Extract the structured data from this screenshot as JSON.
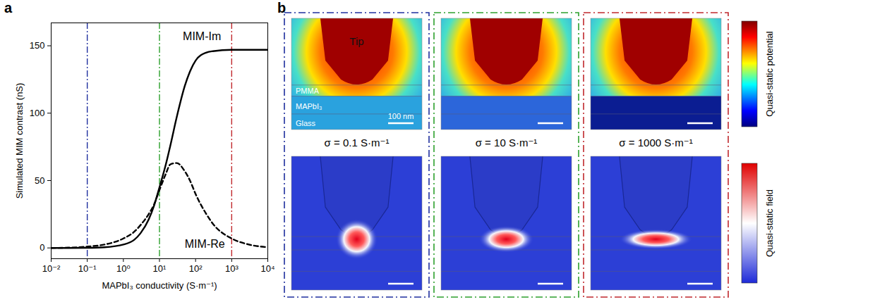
{
  "panel_labels": [
    "a",
    "b"
  ],
  "chart_data": {
    "type": "line",
    "xlabel": "MAPbI₃ conductivity (S·m⁻¹)",
    "ylabel": "Simulated MIM contrast (nS)",
    "log": "x",
    "x": [
      0.01,
      0.03,
      0.1,
      0.3,
      1,
      2,
      3,
      5,
      7,
      10,
      15,
      20,
      30,
      50,
      70,
      100,
      200,
      300,
      1000,
      3000,
      10000
    ],
    "series": [
      {
        "name": "MIM-Im",
        "color": "#000000",
        "line_style": "solid",
        "values": [
          0,
          0,
          0.1,
          0.5,
          2.5,
          6,
          11,
          21,
          31,
          45,
          62,
          76,
          97,
          120,
          131,
          139,
          145,
          146,
          147,
          147,
          147
        ]
      },
      {
        "name": "MIM-Re",
        "color": "#000000",
        "line_style": "dashed",
        "values": [
          0,
          0.2,
          1,
          2.5,
          7,
          12,
          17,
          25,
          32,
          43,
          55,
          62,
          63,
          57,
          50,
          40,
          25,
          18,
          7,
          2.5,
          0.5
        ]
      }
    ],
    "xlim": [
      0.01,
      10000
    ],
    "xticks": [
      {
        "value": 0.01,
        "label": "10⁻²"
      },
      {
        "value": 0.1,
        "label": "10⁻¹"
      },
      {
        "value": 1,
        "label": "10⁰"
      },
      {
        "value": 10,
        "label": "10¹"
      },
      {
        "value": 100,
        "label": "10²"
      },
      {
        "value": 1000,
        "label": "10³"
      },
      {
        "value": 10000,
        "label": "10⁴"
      }
    ],
    "ylim": [
      -8,
      167
    ],
    "yticks": [
      0,
      50,
      100,
      150
    ],
    "annotations": [
      {
        "text": "MIM-Im",
        "x": 150,
        "y": 157
      },
      {
        "text": "MIM-Re",
        "x": 180,
        "y": 3
      }
    ],
    "reference_lines": [
      {
        "x": 0.1,
        "color": "#1f2f9e",
        "line_style": "dashdot"
      },
      {
        "x": 10,
        "color": "#2ca02c",
        "line_style": "dashdot"
      },
      {
        "x": 1000,
        "color": "#c0282d",
        "line_style": "dashdot"
      }
    ]
  },
  "simulation_maps": {
    "columns": [
      {
        "sigma_label": "σ = 0.1 S·m⁻¹",
        "color": "#1f2f9e"
      },
      {
        "sigma_label": "σ = 10 S·m⁻¹",
        "color": "#2ca02c"
      },
      {
        "sigma_label": "σ = 1000 S·m⁻¹",
        "color": "#c0282d"
      }
    ],
    "layer_labels": [
      "Tip",
      "PMMA",
      "MAPbI₃",
      "Glass"
    ],
    "scale_bar": "100 nm",
    "colorbars": [
      "Quasi-static potential",
      "Quasi-static field"
    ]
  }
}
